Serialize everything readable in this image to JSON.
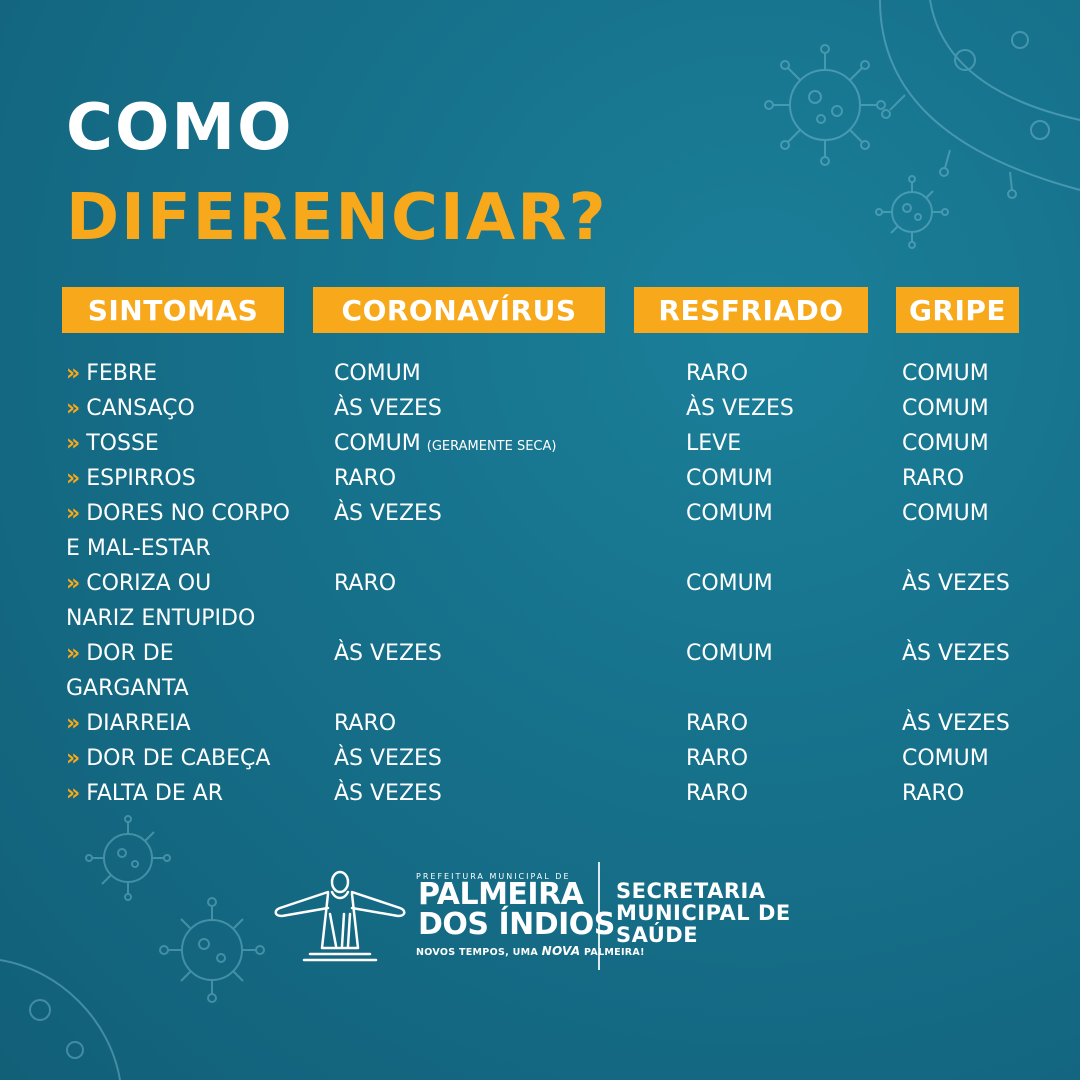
{
  "title": {
    "line1": "COMO",
    "line2": "DIFERENCIAR?"
  },
  "headers": [
    "SINTOMAS",
    "CORONAVÍRUS",
    "RESFRIADO",
    "GRIPE"
  ],
  "rows": [
    {
      "symptom": "FEBRE",
      "symptom_cont": "",
      "coronavirus": "COMUM",
      "coronavirus_note": "",
      "resfriado": "RARO",
      "gripe": "COMUM"
    },
    {
      "symptom": "CANSAÇO",
      "symptom_cont": "",
      "coronavirus": "ÀS VEZES",
      "coronavirus_note": "",
      "resfriado": "ÀS VEZES",
      "gripe": "COMUM"
    },
    {
      "symptom": "TOSSE",
      "symptom_cont": "",
      "coronavirus": "COMUM",
      "coronavirus_note": "(GERAMENTE SECA)",
      "resfriado": "LEVE",
      "gripe": "COMUM"
    },
    {
      "symptom": "ESPIRROS",
      "symptom_cont": "",
      "coronavirus": "RARO",
      "coronavirus_note": "",
      "resfriado": "COMUM",
      "gripe": "RARO"
    },
    {
      "symptom": "DORES NO CORPO",
      "symptom_cont": "E MAL-ESTAR",
      "coronavirus": "ÀS VEZES",
      "coronavirus_note": "",
      "resfriado": "COMUM",
      "gripe": "COMUM"
    },
    {
      "symptom": "CORIZA OU",
      "symptom_cont": "NARIZ ENTUPIDO",
      "coronavirus": "RARO",
      "coronavirus_note": "",
      "resfriado": "COMUM",
      "gripe": "ÀS VEZES"
    },
    {
      "symptom": "DOR DE",
      "symptom_cont": "GARGANTA",
      "coronavirus": "ÀS VEZES",
      "coronavirus_note": "",
      "resfriado": "COMUM",
      "gripe": "ÀS VEZES"
    },
    {
      "symptom": "DIARREIA",
      "symptom_cont": "",
      "coronavirus": "RARO",
      "coronavirus_note": "",
      "resfriado": "RARO",
      "gripe": "ÀS VEZES"
    },
    {
      "symptom": "DOR DE CABEÇA",
      "symptom_cont": "",
      "coronavirus": "ÀS VEZES",
      "coronavirus_note": "",
      "resfriado": "RARO",
      "gripe": "COMUM"
    },
    {
      "symptom": "FALTA DE AR",
      "symptom_cont": "",
      "coronavirus": "ÀS VEZES",
      "coronavirus_note": "",
      "resfriado": "RARO",
      "gripe": "RARO"
    }
  ],
  "bullet": "»",
  "footer": {
    "prefeitura_label": "PREFEITURA MUNICIPAL DE",
    "name_line1": "PALMEIRA",
    "name_line2": "DOS ÍNDIOS",
    "slogan_a": "NOVOS TEMPOS, UMA ",
    "slogan_b": "NOVA",
    "slogan_c": " PALMEIRA!",
    "secretaria": [
      "SECRETARIA",
      "MUNICIPAL DE",
      "SAÚDE"
    ]
  },
  "colors": {
    "accent": "#f7a81b",
    "background": "#16708a",
    "text": "#ffffff"
  },
  "decor_icons": [
    "virus-icon",
    "virus-icon",
    "virus-icon",
    "virus-icon",
    "virus-icon",
    "christ-statue-icon"
  ]
}
